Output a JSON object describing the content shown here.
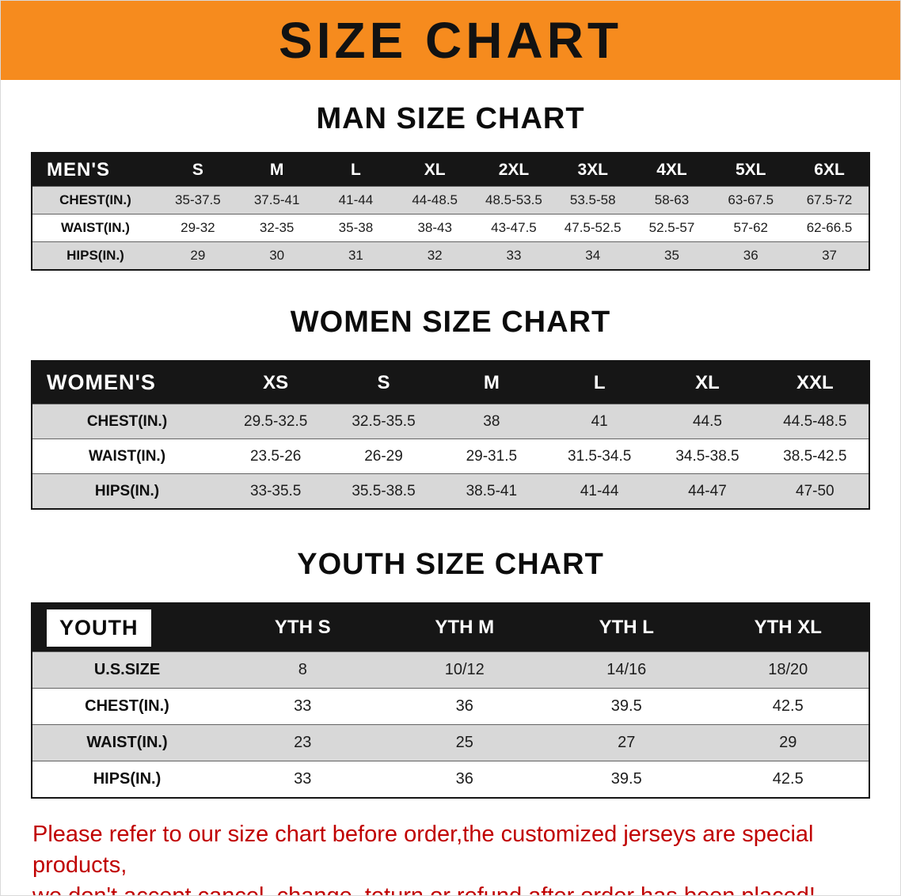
{
  "banner": {
    "title": "SIZE CHART"
  },
  "men": {
    "section_title": "MAN SIZE CHART",
    "corner": "MEN'S",
    "columns": [
      "S",
      "M",
      "L",
      "XL",
      "2XL",
      "3XL",
      "4XL",
      "5XL",
      "6XL"
    ],
    "rows": [
      {
        "label": "CHEST(IN.)",
        "values": [
          "35-37.5",
          "37.5-41",
          "41-44",
          "44-48.5",
          "48.5-53.5",
          "53.5-58",
          "58-63",
          "63-67.5",
          "67.5-72"
        ]
      },
      {
        "label": "WAIST(IN.)",
        "values": [
          "29-32",
          "32-35",
          "35-38",
          "38-43",
          "43-47.5",
          "47.5-52.5",
          "52.5-57",
          "57-62",
          "62-66.5"
        ]
      },
      {
        "label": "HIPS(IN.)",
        "values": [
          "29",
          "30",
          "31",
          "32",
          "33",
          "34",
          "35",
          "36",
          "37"
        ]
      }
    ]
  },
  "women": {
    "section_title": "WOMEN SIZE CHART",
    "corner": "WOMEN'S",
    "columns": [
      "XS",
      "S",
      "M",
      "L",
      "XL",
      "XXL"
    ],
    "rows": [
      {
        "label": "CHEST(IN.)",
        "values": [
          "29.5-32.5",
          "32.5-35.5",
          "38",
          "41",
          "44.5",
          "44.5-48.5"
        ]
      },
      {
        "label": "WAIST(IN.)",
        "values": [
          "23.5-26",
          "26-29",
          "29-31.5",
          "31.5-34.5",
          "34.5-38.5",
          "38.5-42.5"
        ]
      },
      {
        "label": "HIPS(IN.)",
        "values": [
          "33-35.5",
          "35.5-38.5",
          "38.5-41",
          "41-44",
          "44-47",
          "47-50"
        ]
      }
    ]
  },
  "youth": {
    "section_title": "YOUTH SIZE CHART",
    "corner": "YOUTH",
    "columns": [
      "YTH S",
      "YTH M",
      "YTH L",
      "YTH XL"
    ],
    "rows": [
      {
        "label": "U.S.SIZE",
        "values": [
          "8",
          "10/12",
          "14/16",
          "18/20"
        ]
      },
      {
        "label": "CHEST(IN.)",
        "values": [
          "33",
          "36",
          "39.5",
          "42.5"
        ]
      },
      {
        "label": "WAIST(IN.)",
        "values": [
          "23",
          "25",
          "27",
          "29"
        ]
      },
      {
        "label": "HIPS(IN.)",
        "values": [
          "33",
          "36",
          "39.5",
          "42.5"
        ]
      }
    ]
  },
  "footer": {
    "line1": "Please refer to our size chart before order,the customized jerseys are special products,",
    "line2": "we don't accept cancel, change, teturn or refund after order has been placed!"
  },
  "colors": {
    "banner_bg": "#f68b1e",
    "table_header_bg": "#161616",
    "table_header_text": "#ffffff",
    "alt_row_bg": "#d8d8d8",
    "footer_text": "#c00000"
  }
}
